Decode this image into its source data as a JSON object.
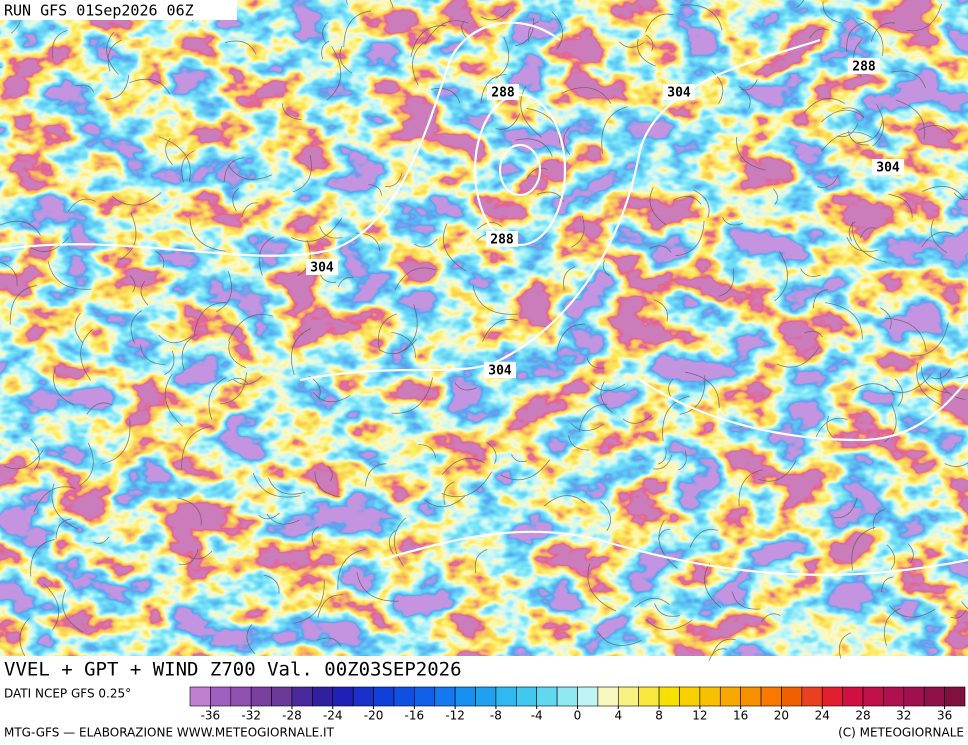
{
  "run_label": "RUN GFS 01Sep2026 06Z",
  "map_title": "VVEL + GPT + WIND Z700 Val. 00Z03SEP2026",
  "contour_labels": [
    288,
    288,
    288,
    304,
    304,
    304,
    304
  ],
  "source_note": "DATI NCEP GFS 0.25°",
  "footer_left": "MTG-GFS — ELABORAZIONE WWW.METEOGIORNALE.IT",
  "footer_right": "(C) METEOGIORNALE",
  "colorbar": {
    "range": [
      -38,
      38
    ],
    "ticks": [
      -36,
      -32,
      -28,
      -24,
      -20,
      -16,
      -12,
      -8,
      -4,
      0,
      4,
      8,
      12,
      16,
      20,
      24,
      28,
      32,
      36
    ],
    "colors": [
      "#c080d0",
      "#a060c0",
      "#9050b0",
      "#7a40a0",
      "#6a3a98",
      "#4a2a9a",
      "#3020a0",
      "#2020b8",
      "#1a30c8",
      "#1040d8",
      "#1050e0",
      "#1060e8",
      "#1478f0",
      "#1890f0",
      "#20a0f0",
      "#30b8f0",
      "#40c8f0",
      "#60d8f0",
      "#90e8f0",
      "#c0f4f4",
      "#f8f8c0",
      "#f8f080",
      "#f8e840",
      "#f8e000",
      "#f8d000",
      "#f8c000",
      "#f8a800",
      "#f89000",
      "#f87800",
      "#f06000",
      "#e84020",
      "#e02030",
      "#d01040",
      "#c01048",
      "#b01050",
      "#a01050",
      "#901048",
      "#801040"
    ]
  }
}
